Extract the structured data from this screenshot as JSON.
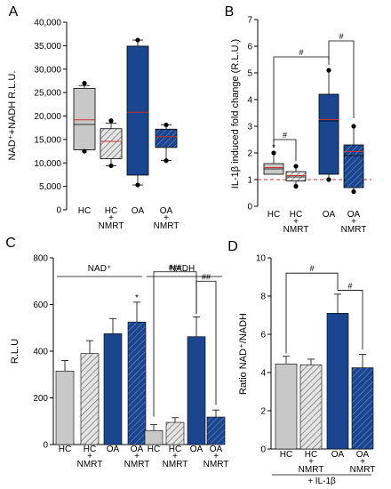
{
  "colors": {
    "hc": "#c8c8c8",
    "nmrt_hatch": "#888888",
    "oa": "#1a4690",
    "median_line": "#d03030",
    "dashed_ref": "#d03030"
  },
  "chart_data": [
    {
      "panel": "A",
      "type": "box",
      "ylabel": "NAD⁺+NADH R.L.U.",
      "ylim": [
        0,
        40000
      ],
      "yticks": [
        0,
        5000,
        10000,
        15000,
        20000,
        25000,
        30000,
        35000,
        40000
      ],
      "ytick_labels": [
        "0",
        "5,000",
        "10,000",
        "15,000",
        "20,000",
        "25,000",
        "30,000",
        "35,000",
        "40,000"
      ],
      "categories": [
        {
          "label": "HC",
          "label2": ""
        },
        {
          "label": "HC",
          "label2": "+\nNMRT"
        },
        {
          "label": "OA",
          "label2": ""
        },
        {
          "label": "OA",
          "label2": "+\nNMRT"
        }
      ],
      "boxes": [
        {
          "q1": 12800,
          "median": 18200,
          "mean": 19200,
          "q3": 25900,
          "wlo": 12800,
          "whi": 26500,
          "outliers": [
            12500,
            27000
          ],
          "style": "hc"
        },
        {
          "q1": 10900,
          "median": 14600,
          "mean": 14600,
          "q3": 17300,
          "wlo": 9400,
          "whi": 18500,
          "outliers": [
            9400,
            19000
          ],
          "style": "hc_nmrt"
        },
        {
          "q1": 7400,
          "median": 20800,
          "mean": 20800,
          "q3": 34900,
          "wlo": 5300,
          "whi": 36200,
          "outliers": [
            5300,
            36200
          ],
          "style": "oa"
        },
        {
          "q1": 13300,
          "median": 15600,
          "mean": 15600,
          "q3": 17200,
          "wlo": 10500,
          "whi": 18100,
          "outliers": [
            10500,
            18100
          ],
          "style": "oa_nmrt"
        }
      ]
    },
    {
      "panel": "B",
      "type": "box",
      "ylabel": "IL-1β induced fold change (R.L.U.)",
      "ylim": [
        0,
        7
      ],
      "yticks": [
        0,
        1,
        2,
        3,
        4,
        5,
        6,
        7
      ],
      "ytick_labels": [
        "0",
        "1",
        "2",
        "3",
        "4",
        "5",
        "6",
        "7"
      ],
      "categories": [
        {
          "label": "HC",
          "label2": ""
        },
        {
          "label": "HC",
          "label2": "+\nNMRT"
        },
        {
          "label": "OA",
          "label2": ""
        },
        {
          "label": "OA",
          "label2": "+\nNMRT"
        }
      ],
      "boxes": [
        {
          "q1": 1.2,
          "median": 1.4,
          "mean": 1.45,
          "q3": 1.6,
          "wlo": 1.2,
          "whi": 2.0,
          "outliers": [
            2.0
          ],
          "style": "hc"
        },
        {
          "q1": 0.95,
          "median": 1.1,
          "mean": 1.15,
          "q3": 1.3,
          "wlo": 0.75,
          "whi": 1.5,
          "outliers": [
            0.75,
            1.5
          ],
          "style": "hc_nmrt"
        },
        {
          "q1": 1.2,
          "median": 3.2,
          "mean": 3.25,
          "q3": 4.2,
          "wlo": 1.0,
          "whi": 5.1,
          "outliers": [
            1.0,
            5.1
          ],
          "style": "oa"
        },
        {
          "q1": 0.7,
          "median": 1.9,
          "mean": 2.05,
          "q3": 2.3,
          "wlo": 0.55,
          "whi": 3.0,
          "outliers": [
            0.55,
            3.0
          ],
          "style": "oa_nmrt"
        }
      ],
      "reference_line": 1.0,
      "annotations": {
        "star": "*",
        "sig": "#"
      }
    },
    {
      "panel": "C",
      "type": "bar",
      "ylabel": "R.L.U",
      "ylim": [
        0,
        800
      ],
      "yticks": [
        0,
        200,
        400,
        600,
        800
      ],
      "ytick_labels": [
        "0",
        "200",
        "400",
        "600",
        "800"
      ],
      "groups": [
        {
          "name": "NAD⁺",
          "categories": [
            {
              "label": "HC",
              "label2": ""
            },
            {
              "label": "HC",
              "label2": "+\nNMRT"
            },
            {
              "label": "OA",
              "label2": ""
            },
            {
              "label": "OA",
              "label2": "+\nNMRT"
            }
          ],
          "values": [
            315,
            390,
            475,
            525
          ],
          "errors": [
            45,
            55,
            65,
            85
          ]
        },
        {
          "name": "NADH",
          "categories": [
            {
              "label": "HC",
              "label2": ""
            },
            {
              "label": "HC",
              "label2": "+\nNMRT"
            },
            {
              "label": "OA",
              "label2": ""
            },
            {
              "label": "OA",
              "label2": "+\nNMRT"
            }
          ],
          "values": [
            60,
            95,
            462,
            118
          ],
          "errors": [
            25,
            20,
            85,
            30
          ]
        }
      ],
      "annotations": {
        "star": "*",
        "sig3": "###",
        "sig2": "##"
      }
    },
    {
      "panel": "D",
      "type": "bar",
      "ylabel": "Ratio NAD⁺/NADH",
      "ylim": [
        0,
        10
      ],
      "yticks": [
        0,
        2,
        4,
        6,
        8,
        10
      ],
      "ytick_labels": [
        "0",
        "2",
        "4",
        "6",
        "8",
        "10"
      ],
      "categories": [
        {
          "label": "HC",
          "label2": ""
        },
        {
          "label": "HC",
          "label2": "+\nNMRT"
        },
        {
          "label": "OA",
          "label2": ""
        },
        {
          "label": "OA",
          "label2": "+\nNMRT"
        }
      ],
      "values": [
        4.45,
        4.4,
        7.1,
        4.25
      ],
      "errors": [
        0.4,
        0.3,
        1.0,
        0.7
      ],
      "footer": "+ IL-1β",
      "annotations": {
        "sig": "#"
      }
    }
  ]
}
